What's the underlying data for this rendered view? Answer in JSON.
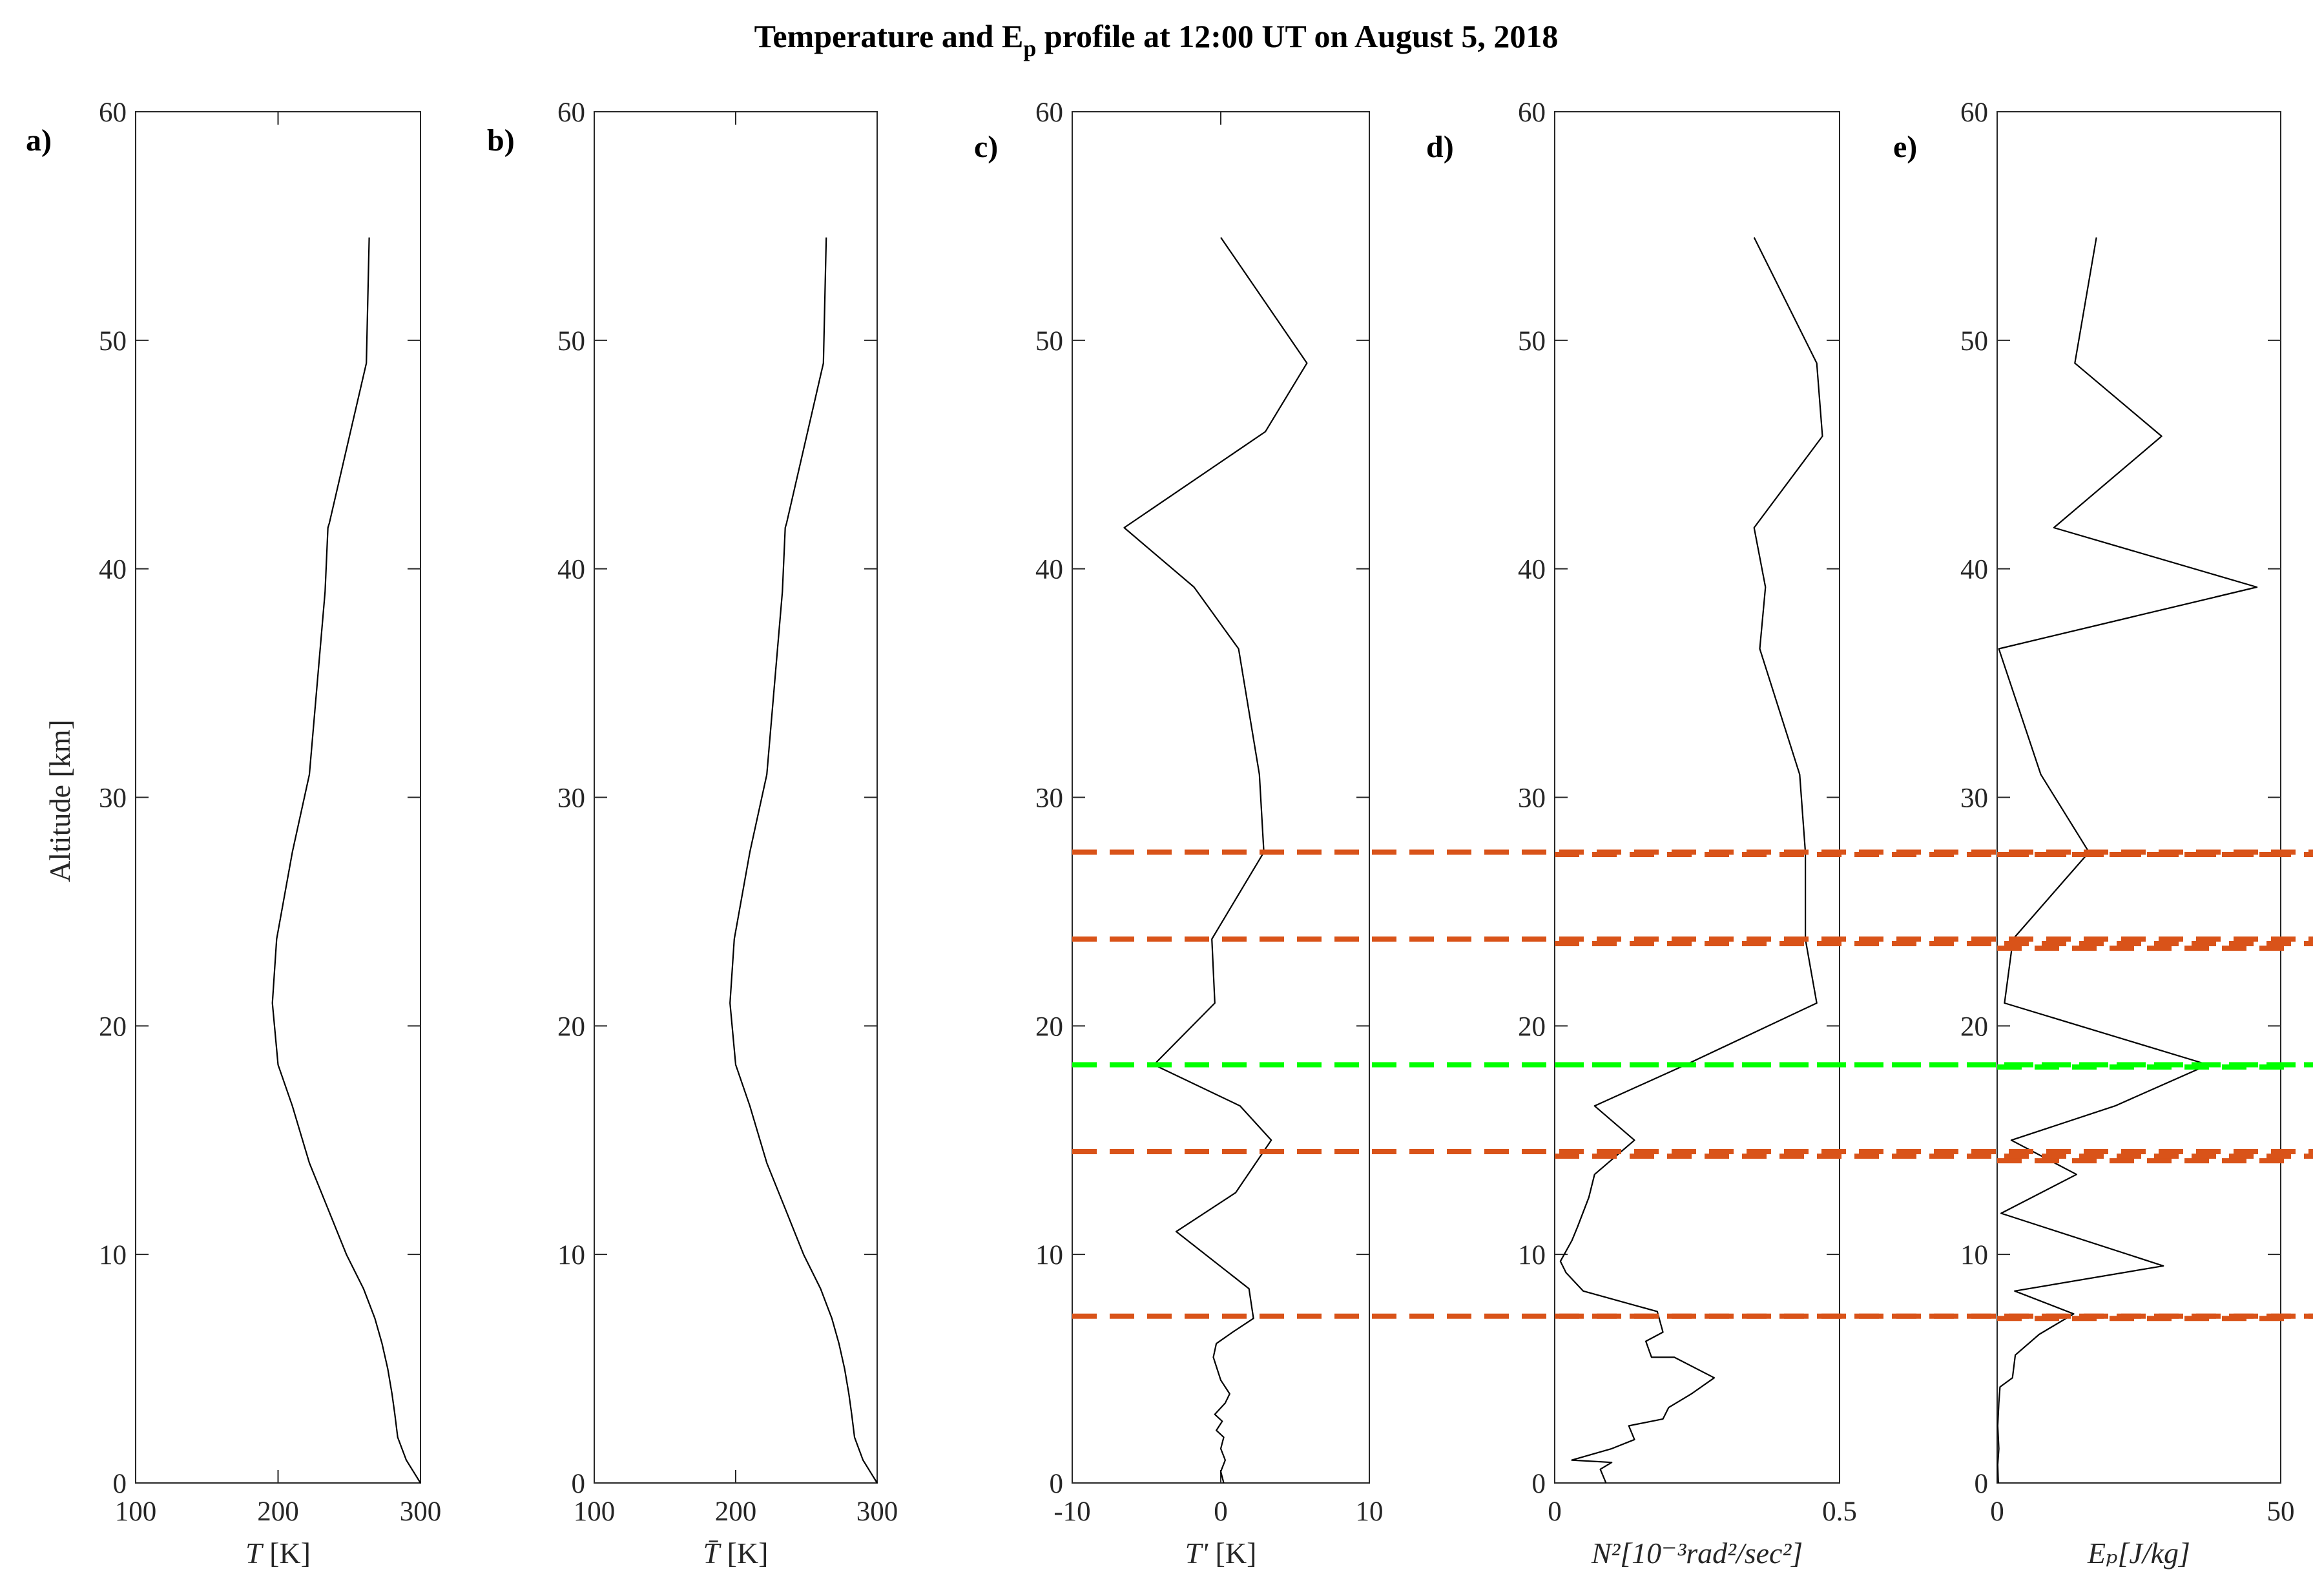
{
  "title_prefix": "Temperature and E",
  "title_sub": "p",
  "title_suffix": " profile at 12:00 UT on August 5, 2018",
  "ylabel": "Altitude [km]",
  "colors": {
    "orange_dash": "#d95319",
    "green_dash": "#00ff00",
    "line": "#000000"
  },
  "chart_data": [
    {
      "type": "line",
      "panel": "a)",
      "xlabel_sym": "T",
      "xlabel_unit": " [K]",
      "xlim": [
        100,
        300
      ],
      "ylim": [
        0,
        60
      ],
      "xticks": [
        "100",
        "200",
        "300"
      ],
      "yticks": [
        "0",
        "10",
        "20",
        "30",
        "40",
        "50",
        "60"
      ],
      "series": [
        {
          "name": "T",
          "x": [
            300,
            290,
            284,
            282,
            280,
            277,
            273,
            268,
            260,
            248,
            235,
            222,
            210,
            200,
            196,
            199,
            210,
            222,
            233,
            235,
            236,
            262,
            264
          ],
          "y": [
            0,
            1,
            2,
            3,
            3.9,
            5,
            6.1,
            7.2,
            8.5,
            10,
            12,
            14,
            16.5,
            18.3,
            21,
            23.8,
            27.6,
            31,
            39,
            41.8,
            42,
            49,
            54.5
          ]
        }
      ]
    },
    {
      "type": "line",
      "panel": "b)",
      "xlabel_sym": "T̄",
      "xlabel_unit": " [K]",
      "xlim": [
        100,
        300
      ],
      "ylim": [
        0,
        60
      ],
      "xticks": [
        "100",
        "200",
        "300"
      ],
      "yticks": [
        "0",
        "10",
        "20",
        "30",
        "40",
        "50",
        "60"
      ],
      "series": [
        {
          "name": "T-bar",
          "x": [
            300,
            290,
            284,
            282,
            280,
            277,
            273,
            268,
            260,
            248,
            235,
            222,
            210,
            200,
            196,
            199,
            210,
            222,
            233,
            235,
            236,
            262,
            264
          ],
          "y": [
            0,
            1,
            2,
            3,
            3.9,
            5,
            6.1,
            7.2,
            8.5,
            10,
            12,
            14,
            16.5,
            18.3,
            21,
            23.8,
            27.6,
            31,
            39,
            41.8,
            42,
            49,
            54.5
          ]
        }
      ]
    },
    {
      "type": "line",
      "panel": "c)",
      "xlabel_sym": "T'",
      "xlabel_unit": " [K]",
      "xlim": [
        -10,
        10
      ],
      "ylim": [
        0,
        60
      ],
      "xticks": [
        "-10",
        "0",
        "10"
      ],
      "yticks": [
        "0",
        "10",
        "20",
        "30",
        "40",
        "50",
        "60"
      ],
      "series": [
        {
          "name": "T'",
          "x": [
            0.2,
            0,
            0.3,
            0,
            0.2,
            -0.3,
            0.1,
            -0.4,
            0.3,
            0.6,
            0,
            -0.5,
            -0.3,
            0.8,
            2.2,
            1.9,
            -3,
            1,
            3.4,
            1.3,
            -4.5,
            -0.4,
            -0.6,
            2.9,
            2.6,
            1.2,
            -1.8,
            -6.5,
            3,
            5.8,
            0
          ],
          "y": [
            0,
            0.5,
            1,
            1.5,
            2,
            2.3,
            2.7,
            3,
            3.5,
            3.9,
            4.5,
            5.5,
            6.1,
            6.6,
            7.2,
            8.5,
            11,
            12.7,
            15,
            16.5,
            18.3,
            21,
            23.8,
            27.6,
            31,
            36.5,
            39.2,
            41.8,
            46,
            49,
            54.5
          ]
        }
      ],
      "hlines": [
        {
          "y": 27.6,
          "x_from": -10,
          "kind": "orange"
        },
        {
          "y": 23.8,
          "x_from": -10,
          "kind": "orange"
        },
        {
          "y": 18.3,
          "x_from": -10,
          "kind": "green"
        },
        {
          "y": 14.5,
          "x_from": -10,
          "kind": "orange"
        },
        {
          "y": 7.3,
          "x_from": -10,
          "kind": "orange"
        }
      ]
    },
    {
      "type": "line",
      "panel": "d)",
      "xlabel_sym": "N²[10⁻³rad²/sec²]",
      "xlabel_unit": "",
      "xlim": [
        0,
        0.5
      ],
      "ylim": [
        0,
        60
      ],
      "xticks": [
        "0",
        "0.5"
      ],
      "yticks": [
        "0",
        "10",
        "20",
        "30",
        "40",
        "50",
        "60"
      ],
      "series": [
        {
          "name": "N2",
          "x": [
            0.09,
            0.08,
            0.1,
            0.03,
            0.1,
            0.14,
            0.13,
            0.19,
            0.2,
            0.24,
            0.28,
            0.21,
            0.17,
            0.16,
            0.19,
            0.18,
            0.05,
            0.02,
            0.01,
            0.03,
            0.04,
            0.06,
            0.07,
            0.14,
            0.07,
            0.23,
            0.46,
            0.44,
            0.44,
            0.43,
            0.36,
            0.37,
            0.35,
            0.47,
            0.46,
            0.35
          ],
          "y": [
            0,
            0.6,
            0.9,
            1,
            1.5,
            1.9,
            2.5,
            2.8,
            3.3,
            3.9,
            4.6,
            5.5,
            5.5,
            6.2,
            6.6,
            7.5,
            8.4,
            9.2,
            9.7,
            10.6,
            11.2,
            12.5,
            13.5,
            15,
            16.5,
            18.3,
            21,
            23.8,
            27.6,
            31,
            36.5,
            39.2,
            41.8,
            45.8,
            49,
            54.5
          ]
        }
      ],
      "hlines": [
        {
          "y": 27.5,
          "kind": "orange"
        },
        {
          "y": 23.6,
          "kind": "orange"
        },
        {
          "y": 18.3,
          "kind": "green"
        },
        {
          "y": 14.3,
          "kind": "orange"
        },
        {
          "y": 7.3,
          "kind": "orange"
        }
      ]
    },
    {
      "type": "line",
      "panel": "e)",
      "xlabel_sym": "Eₚ[J/kg]",
      "xlabel_unit": "",
      "xlim": [
        0,
        50
      ],
      "ylim": [
        0,
        60
      ],
      "xticks": [
        "0",
        "50"
      ],
      "yticks": [
        "0",
        "10",
        "20",
        "30",
        "40",
        "50",
        "60"
      ],
      "series": [
        {
          "name": "Ep",
          "x": [
            0.2,
            0.1,
            0.3,
            0.1,
            0.3,
            0.5,
            2.7,
            3.2,
            7.4,
            13.5,
            3.1,
            29.3,
            0.7,
            14,
            2.5,
            20.8,
            37.2,
            1.3,
            2.8,
            16.2,
            7.7,
            0.3,
            45.8,
            10,
            29,
            13.7,
            17.5
          ],
          "y": [
            0,
            0.8,
            1.5,
            2.5,
            3.5,
            4.2,
            4.6,
            5.6,
            6.5,
            7.4,
            8.4,
            9.5,
            11.8,
            13.5,
            15,
            16.5,
            18.3,
            21,
            23.8,
            27.6,
            31,
            36.5,
            39.2,
            41.8,
            45.8,
            49,
            54.5
          ]
        }
      ],
      "hlines": [
        {
          "y": 27.5,
          "kind": "orange"
        },
        {
          "y": 23.4,
          "kind": "orange"
        },
        {
          "y": 18.2,
          "kind": "green"
        },
        {
          "y": 14.1,
          "kind": "orange"
        },
        {
          "y": 7.2,
          "kind": "orange"
        }
      ]
    }
  ]
}
